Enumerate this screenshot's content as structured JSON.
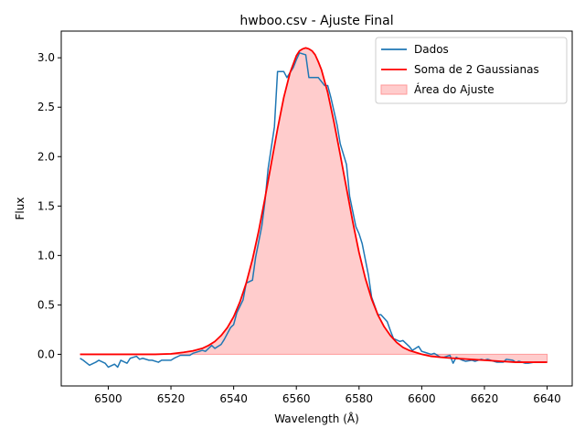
{
  "chart_data": {
    "type": "line",
    "title": "hwboo.csv - Ajuste Final",
    "xlabel": "Wavelength (Å)",
    "ylabel": "Flux",
    "xlim": [
      6485,
      6648
    ],
    "ylim": [
      -0.32,
      3.27
    ],
    "xticks": [
      6500,
      6520,
      6540,
      6560,
      6580,
      6600,
      6620,
      6640
    ],
    "yticks": [
      0.0,
      0.5,
      1.0,
      1.5,
      2.0,
      2.5,
      3.0
    ],
    "grid": false,
    "legend_position": "upper right",
    "series": [
      {
        "name": "Dados",
        "style": "line",
        "color": "#1f77b4",
        "x": [
          6491,
          6492,
          6494,
          6496,
          6497,
          6499,
          6500,
          6502,
          6503,
          6504,
          6506,
          6507,
          6509,
          6510,
          6511,
          6513,
          6514,
          6516,
          6517,
          6519,
          6520,
          6521,
          6523,
          6524,
          6526,
          6527,
          6529,
          6530,
          6531,
          6533,
          6534,
          6536,
          6537,
          6539,
          6540,
          6541,
          6543,
          6544,
          6546,
          6547,
          6549,
          6550,
          6551,
          6553,
          6554,
          6556,
          6557,
          6559,
          6560,
          6561,
          6563,
          6564,
          6566,
          6567,
          6569,
          6570,
          6571,
          6573,
          6574,
          6576,
          6577,
          6579,
          6580,
          6581,
          6583,
          6584,
          6586,
          6587,
          6589,
          6590,
          6591,
          6593,
          6594,
          6596,
          6597,
          6599,
          6600,
          6601,
          6603,
          6604,
          6606,
          6607,
          6609,
          6610,
          6611,
          6613,
          6614,
          6616,
          6617,
          6619,
          6620,
          6621,
          6623,
          6624,
          6626,
          6627,
          6629,
          6630,
          6631,
          6633,
          6634,
          6636,
          6637,
          6639,
          6640
        ],
        "y": [
          -0.04,
          -0.06,
          -0.11,
          -0.08,
          -0.06,
          -0.09,
          -0.13,
          -0.1,
          -0.13,
          -0.06,
          -0.09,
          -0.04,
          -0.02,
          -0.05,
          -0.04,
          -0.06,
          -0.06,
          -0.08,
          -0.06,
          -0.06,
          -0.06,
          -0.04,
          -0.01,
          -0.01,
          -0.01,
          0.01,
          0.03,
          0.04,
          0.03,
          0.09,
          0.06,
          0.1,
          0.15,
          0.27,
          0.3,
          0.42,
          0.55,
          0.72,
          0.75,
          0.98,
          1.3,
          1.55,
          1.88,
          2.3,
          2.86,
          2.86,
          2.8,
          2.9,
          2.98,
          3.05,
          3.03,
          2.8,
          2.8,
          2.8,
          2.72,
          2.72,
          2.6,
          2.32,
          2.13,
          1.92,
          1.6,
          1.29,
          1.22,
          1.12,
          0.8,
          0.58,
          0.4,
          0.4,
          0.33,
          0.24,
          0.16,
          0.13,
          0.14,
          0.08,
          0.04,
          0.08,
          0.03,
          0.02,
          0.0,
          0.01,
          -0.03,
          -0.03,
          -0.01,
          -0.09,
          -0.03,
          -0.06,
          -0.07,
          -0.06,
          -0.07,
          -0.05,
          -0.06,
          -0.05,
          -0.07,
          -0.08,
          -0.08,
          -0.05,
          -0.06,
          -0.08,
          -0.07,
          -0.09,
          -0.09,
          -0.08,
          -0.08,
          -0.08,
          -0.08
        ]
      },
      {
        "name": "Soma de 2 Gaussianas",
        "style": "line",
        "color": "#ff0000",
        "x": [
          6491,
          6495,
          6500,
          6505,
          6510,
          6515,
          6520,
          6524,
          6527,
          6530,
          6532,
          6534,
          6536,
          6538,
          6540,
          6542,
          6544,
          6546,
          6548,
          6550,
          6552,
          6554,
          6556,
          6558,
          6560,
          6561,
          6562,
          6563,
          6564,
          6565,
          6566,
          6567,
          6568,
          6570,
          6572,
          6574,
          6576,
          6578,
          6580,
          6582,
          6584,
          6586,
          6588,
          6590,
          6592,
          6594,
          6596,
          6598,
          6600,
          6603,
          6606,
          6610,
          6615,
          6620,
          6625,
          6630,
          6635,
          6640
        ],
        "y": [
          0.0,
          0.0,
          0.0,
          0.0,
          0.0,
          0.0,
          0.005,
          0.02,
          0.035,
          0.06,
          0.09,
          0.13,
          0.19,
          0.27,
          0.38,
          0.53,
          0.72,
          0.96,
          1.25,
          1.58,
          1.93,
          2.28,
          2.6,
          2.85,
          3.02,
          3.07,
          3.09,
          3.1,
          3.09,
          3.07,
          3.03,
          2.96,
          2.88,
          2.65,
          2.35,
          2.02,
          1.68,
          1.34,
          1.03,
          0.77,
          0.56,
          0.4,
          0.28,
          0.19,
          0.12,
          0.07,
          0.04,
          0.02,
          0.0,
          -0.02,
          -0.03,
          -0.04,
          -0.05,
          -0.06,
          -0.07,
          -0.08,
          -0.08,
          -0.08
        ]
      },
      {
        "name": "Área do Ajuste",
        "style": "fill",
        "color": "#ffcccc",
        "edge_color": "#ff9999",
        "source": "Soma de 2 Gaussianas"
      }
    ]
  }
}
